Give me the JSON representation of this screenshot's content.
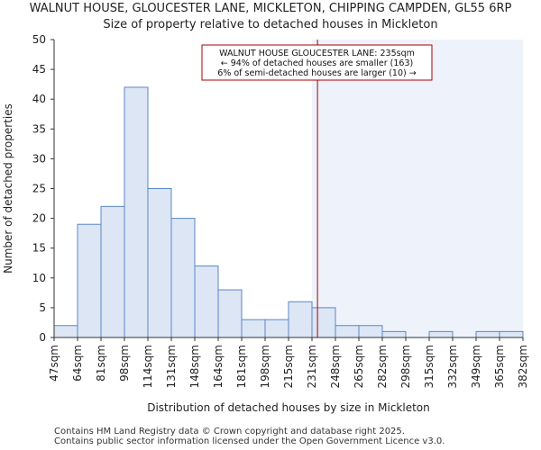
{
  "chart_data": {
    "type": "histogram",
    "title": "WALNUT HOUSE, GLOUCESTER LANE, MICKLETON, CHIPPING CAMPDEN, GL55 6RP",
    "subtitle": "Size of property relative to detached houses in Mickleton",
    "xlabel": "Distribution of detached houses by size in Mickleton",
    "ylabel": "Number of detached properties",
    "ylim": [
      0,
      50
    ],
    "yticks": [
      0,
      5,
      10,
      15,
      20,
      25,
      30,
      35,
      40,
      45,
      50
    ],
    "categories": [
      "47sqm",
      "64sqm",
      "81sqm",
      "98sqm",
      "114sqm",
      "131sqm",
      "148sqm",
      "164sqm",
      "181sqm",
      "198sqm",
      "215sqm",
      "231sqm",
      "248sqm",
      "265sqm",
      "282sqm",
      "298sqm",
      "315sqm",
      "332sqm",
      "349sqm",
      "365sqm",
      "382sqm"
    ],
    "values": [
      2,
      19,
      22,
      42,
      25,
      20,
      12,
      8,
      3,
      3,
      6,
      5,
      2,
      2,
      1,
      0,
      1,
      0,
      1,
      1
    ],
    "property_size_sqm": 235,
    "highlight_from_sqm": 231,
    "colors": {
      "bar_fill": "#dce6f5",
      "bar_stroke": "#5b87c6",
      "marker_line": "#aa0000",
      "shaded_region": "#eef2fb"
    },
    "annotation": {
      "lines": [
        "WALNUT HOUSE GLOUCESTER LANE: 235sqm",
        "← 94% of detached houses are smaller (163)",
        "6% of semi-detached houses are larger (10) →"
      ]
    }
  },
  "footer": {
    "line1": "Contains HM Land Registry data © Crown copyright and database right 2025.",
    "line2": "Contains public sector information licensed under the Open Government Licence v3.0."
  }
}
